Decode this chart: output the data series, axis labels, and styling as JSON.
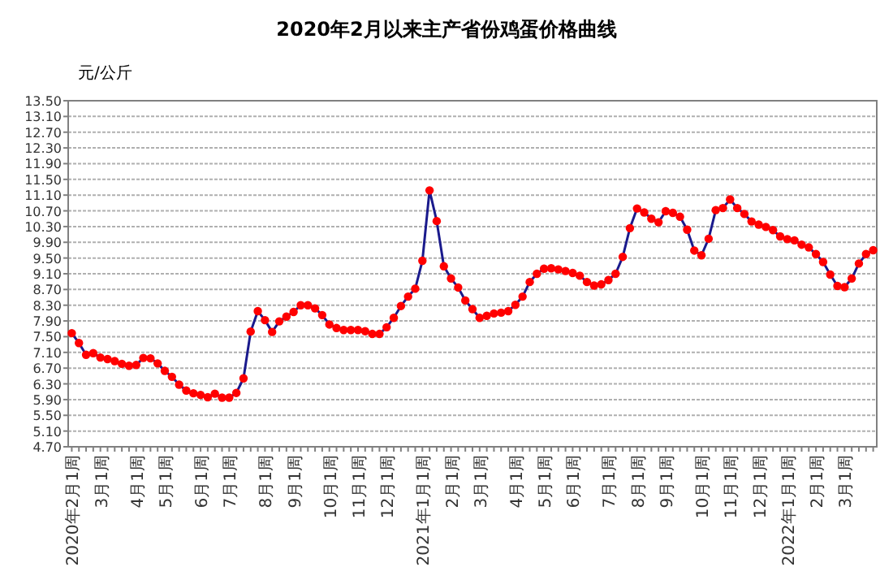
{
  "chart_data": {
    "type": "line",
    "title": "2020年2月以来主产省份鸡蛋价格曲线",
    "ylabel": "元/公斤",
    "categories": [
      "2020年2月1周",
      null,
      null,
      null,
      "3月1周",
      null,
      null,
      null,
      null,
      "4月1周",
      null,
      null,
      null,
      "5月1周",
      null,
      null,
      null,
      null,
      "6月1周",
      null,
      null,
      null,
      "7月1周",
      null,
      null,
      null,
      null,
      "8月1周",
      null,
      null,
      null,
      "9月1周",
      null,
      null,
      null,
      null,
      "10月1周",
      null,
      null,
      null,
      "11月1周",
      null,
      null,
      null,
      "12月1周",
      null,
      null,
      null,
      null,
      "2021年1月1周",
      null,
      null,
      null,
      "2月1周",
      null,
      null,
      null,
      "3月1周",
      null,
      null,
      null,
      null,
      "4月1周",
      null,
      null,
      null,
      "5月1周",
      null,
      null,
      null,
      "6月1周",
      null,
      null,
      null,
      null,
      "7月1周",
      null,
      null,
      null,
      "8月1周",
      null,
      null,
      null,
      "9月1周",
      null,
      null,
      null,
      null,
      "10月1周",
      null,
      null,
      null,
      "11月1周",
      null,
      null,
      null,
      "12月1周",
      null,
      null,
      null,
      "2022年1月1周",
      null,
      null,
      null,
      "2月1周",
      null,
      null,
      null,
      "3月1周",
      null,
      null,
      null,
      null
    ],
    "series": [
      {
        "color": "#ff0000",
        "values": [
          7.59,
          7.34,
          7.04,
          7.08,
          6.97,
          6.93,
          6.88,
          6.81,
          6.76,
          6.78,
          6.96,
          6.95,
          6.82,
          6.63,
          6.48,
          6.28,
          6.13,
          6.06,
          6.02,
          5.96,
          6.05,
          5.95,
          5.95,
          6.07,
          6.44,
          7.63,
          8.15,
          7.92,
          7.62,
          7.89,
          8.01,
          8.13,
          8.3,
          8.3,
          8.22,
          8.05,
          7.81,
          7.72,
          7.67,
          7.67,
          7.67,
          7.64,
          7.57,
          7.57,
          7.74,
          7.98,
          8.28,
          8.52,
          8.72,
          9.43,
          11.22,
          10.44,
          9.29,
          8.98,
          8.75,
          8.42,
          8.2,
          7.98,
          8.03,
          8.09,
          8.11,
          8.15,
          8.31,
          8.52,
          8.89,
          9.1,
          9.23,
          9.24,
          9.21,
          9.17,
          9.12,
          9.05,
          8.89,
          8.8,
          8.83,
          8.94,
          9.1,
          9.53,
          10.26,
          10.76,
          10.66,
          10.5,
          10.41,
          10.69,
          10.65,
          10.55,
          10.22,
          9.69,
          9.57,
          9.99,
          10.72,
          10.77,
          10.99,
          10.77,
          10.62,
          10.43,
          10.35,
          10.29,
          10.21,
          10.05,
          9.98,
          9.95,
          9.84,
          9.77,
          9.6,
          9.4,
          9.08,
          8.79,
          8.76,
          8.98,
          9.36,
          9.6,
          9.7
        ]
      }
    ],
    "ylim": [
      4.7,
      13.5
    ],
    "yticks": [
      {
        "value": 4.7,
        "label": "4.70"
      },
      {
        "value": 5.1,
        "label": "5.10"
      },
      {
        "value": 5.5,
        "label": "5.50"
      },
      {
        "value": 5.9,
        "label": "5.90"
      },
      {
        "value": 6.3,
        "label": "6.30"
      },
      {
        "value": 6.7,
        "label": "6.70"
      },
      {
        "value": 7.1,
        "label": "7.10"
      },
      {
        "value": 7.5,
        "label": "7.50"
      },
      {
        "value": 7.9,
        "label": "7.90"
      },
      {
        "value": 8.3,
        "label": "8.30"
      },
      {
        "value": 8.7,
        "label": "8.70"
      },
      {
        "value": 9.1,
        "label": "9.10"
      },
      {
        "value": 9.5,
        "label": "9.50"
      },
      {
        "value": 9.9,
        "label": "9.90"
      },
      {
        "value": 10.3,
        "label": "10.30"
      },
      {
        "value": 10.7,
        "label": "10.70"
      },
      {
        "value": 11.1,
        "label": "11.10"
      },
      {
        "value": 11.5,
        "label": "11.50"
      },
      {
        "value": 11.9,
        "label": "11.90"
      },
      {
        "value": 12.3,
        "label": "12.30"
      },
      {
        "value": 12.7,
        "label": "12.70"
      },
      {
        "value": 13.1,
        "label": "13.10"
      },
      {
        "value": 13.5,
        "label": "13.50"
      }
    ],
    "grid": "y",
    "marker": "circle",
    "line_style": "solid"
  }
}
